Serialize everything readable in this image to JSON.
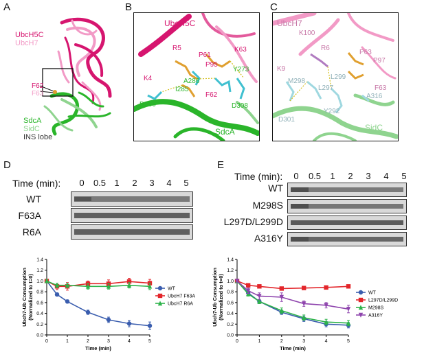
{
  "panels": {
    "A": {
      "letter": "A",
      "labels": {
        "ubch5c": "UbcH5C",
        "ubch7": "UbcH7",
        "f62": "F62",
        "f63": "F63",
        "sdca": "SdcA",
        "sidc": "SidC",
        "ins": "INS lobe"
      },
      "colors": {
        "ubch5c": "#d6156f",
        "ubch7": "#f29ac6",
        "sdca": "#2ab52a",
        "sidc": "#8fd48f"
      }
    },
    "B": {
      "letter": "B",
      "title": "UbcH5C",
      "sdca": "SdcA",
      "residues": [
        "R5",
        "P61",
        "K63",
        "P95",
        "Y273",
        "K4",
        "A286",
        "I285",
        "F62",
        "D290",
        "D308"
      ]
    },
    "C": {
      "letter": "C",
      "title": "UbcH7",
      "sidc": "SidC",
      "residues": [
        "K100",
        "R6",
        "P63",
        "P97",
        "K9",
        "M298",
        "L299",
        "L297",
        "F63",
        "A316",
        "Y292",
        "D301"
      ]
    },
    "D": {
      "letter": "D",
      "time_label": "Time (min):",
      "times": [
        "0",
        "0.5",
        "1",
        "2",
        "3",
        "4",
        "5"
      ],
      "gel_rows": [
        "WT",
        "F63A",
        "R6A"
      ]
    },
    "E": {
      "letter": "E",
      "time_label": "Time (min):",
      "times": [
        "0",
        "0.5",
        "1",
        "2",
        "3",
        "4",
        "5"
      ],
      "gel_rows": [
        "WT",
        "M298S",
        "L297D/L299D",
        "A316Y"
      ]
    }
  },
  "chart_data": [
    {
      "type": "line",
      "panel": "D",
      "xlabel": "Time (min)",
      "ylabel": "Ubch7-Ub Consumption (Normalized to t=0)",
      "xlim": [
        0,
        5
      ],
      "ylim": [
        0,
        1.4
      ],
      "xticks": [
        0,
        1,
        2,
        3,
        4,
        5
      ],
      "yticks": [
        "0.0",
        "0.2",
        "0.4",
        "0.6",
        "0.8",
        "1.0",
        "1.2",
        "1.4"
      ],
      "legend": "right",
      "x": [
        0,
        0.5,
        1,
        2,
        3,
        4,
        5
      ],
      "series": [
        {
          "name": "WT",
          "color": "#3a5dae",
          "marker": "circle",
          "values": [
            1.0,
            0.75,
            0.62,
            0.42,
            0.28,
            0.21,
            0.17
          ],
          "err": [
            0.02,
            0.03,
            0.03,
            0.04,
            0.05,
            0.06,
            0.07
          ]
        },
        {
          "name": "UbcH7 F63A",
          "color": "#e3262b",
          "marker": "square",
          "values": [
            1.0,
            0.9,
            0.9,
            0.95,
            0.95,
            0.99,
            0.96
          ],
          "err": [
            0.03,
            0.06,
            0.07,
            0.05,
            0.07,
            0.06,
            0.07
          ]
        },
        {
          "name": "UbcH7 R6A",
          "color": "#2db34a",
          "marker": "triangle",
          "values": [
            1.0,
            0.92,
            0.92,
            0.9,
            0.9,
            0.92,
            0.9
          ],
          "err": [
            0.03,
            0.04,
            0.04,
            0.05,
            0.05,
            0.05,
            0.06
          ]
        }
      ]
    },
    {
      "type": "line",
      "panel": "E",
      "xlabel": "Time (min)",
      "ylabel": "Ubch7-Ub Consumption (Normalized to t=0)",
      "xlim": [
        0,
        5
      ],
      "ylim": [
        0,
        1.4
      ],
      "xticks": [
        0,
        1,
        2,
        3,
        4,
        5
      ],
      "yticks": [
        "0.0",
        "0.2",
        "0.4",
        "0.6",
        "0.8",
        "1.0",
        "1.2",
        "1.4"
      ],
      "legend": "right",
      "x": [
        0,
        0.5,
        1,
        2,
        3,
        4,
        5
      ],
      "series": [
        {
          "name": "WT",
          "color": "#3a5dae",
          "marker": "circle",
          "values": [
            1.0,
            0.78,
            0.62,
            0.42,
            0.3,
            0.2,
            0.18
          ],
          "err": [
            0.02,
            0.04,
            0.04,
            0.04,
            0.05,
            0.05,
            0.05
          ]
        },
        {
          "name": "L297D/L299D",
          "color": "#e3262b",
          "marker": "square",
          "values": [
            1.0,
            0.92,
            0.9,
            0.86,
            0.87,
            0.88,
            0.9
          ],
          "err": [
            0.02,
            0.03,
            0.02,
            0.02,
            0.02,
            0.02,
            0.02
          ]
        },
        {
          "name": "M298S",
          "color": "#2db34a",
          "marker": "triangle",
          "values": [
            1.0,
            0.76,
            0.62,
            0.45,
            0.32,
            0.24,
            0.22
          ],
          "err": [
            0.02,
            0.04,
            0.04,
            0.05,
            0.05,
            0.05,
            0.05
          ]
        },
        {
          "name": "A316Y",
          "color": "#8e44ad",
          "marker": "triangle-down",
          "values": [
            1.0,
            0.82,
            0.72,
            0.7,
            0.58,
            0.55,
            0.48
          ],
          "err": [
            0.02,
            0.05,
            0.06,
            0.08,
            0.05,
            0.05,
            0.07
          ]
        }
      ]
    }
  ]
}
